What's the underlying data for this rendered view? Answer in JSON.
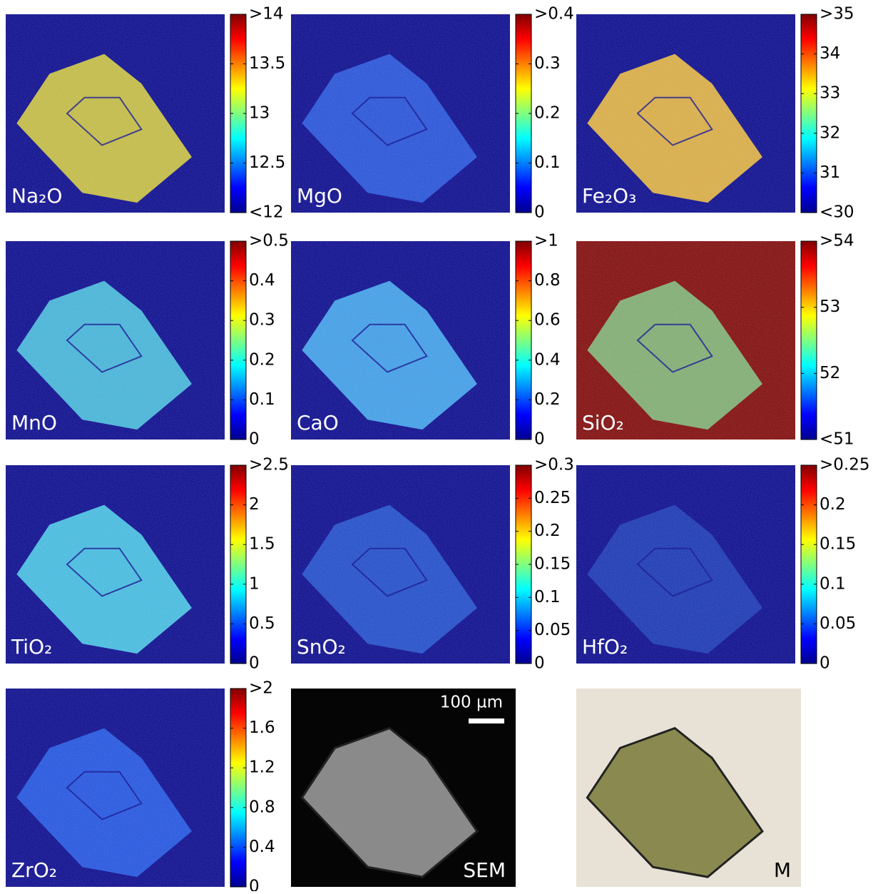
{
  "chart_data": [
    {
      "type": "heatmap",
      "label": "Na₂O",
      "colormap": "jet",
      "color": "#c8c040",
      "clim": [
        12,
        14
      ],
      "cticks": [
        {
          "value": 14,
          "label": ">14"
        },
        13.5,
        13,
        12.5,
        {
          "value": 12,
          "label": "<12"
        }
      ]
    },
    {
      "type": "heatmap",
      "label": "MgO",
      "colormap": "jet",
      "color": "#1e4ee0",
      "clim": [
        0,
        0.4
      ],
      "cticks": [
        {
          "value": 0.4,
          "label": ">0.4"
        },
        0.3,
        0.2,
        0.1,
        0
      ]
    },
    {
      "type": "heatmap",
      "label": "Fe₂O₃",
      "colormap": "jet",
      "color": "#e0b040",
      "clim": [
        30,
        35
      ],
      "cticks": [
        {
          "value": 35,
          "label": ">35"
        },
        34,
        33,
        32,
        31,
        {
          "value": 30,
          "label": "<30"
        }
      ]
    },
    {
      "type": "heatmap",
      "label": "MnO",
      "colormap": "jet",
      "color": "#40b8e0",
      "clim": [
        0,
        0.5
      ],
      "cticks": [
        {
          "value": 0.5,
          "label": ">0.5"
        },
        0.4,
        0.3,
        0.2,
        0.1,
        0
      ]
    },
    {
      "type": "heatmap",
      "label": "CaO",
      "colormap": "jet",
      "color": "#3aa0f0",
      "clim": [
        0,
        1
      ],
      "cticks": [
        {
          "value": 1,
          "label": ">1"
        },
        0.8,
        0.6,
        0.4,
        0.2,
        0
      ]
    },
    {
      "type": "heatmap",
      "label": "SiO₂",
      "colormap": "jet",
      "color": "#80b070",
      "background": "#800000",
      "clim": [
        51,
        54
      ],
      "cticks": [
        {
          "value": 54,
          "label": ">54"
        },
        53,
        52,
        {
          "value": 51,
          "label": "<51"
        }
      ]
    },
    {
      "type": "heatmap",
      "label": "TiO₂",
      "colormap": "jet",
      "color": "#40c0e8",
      "clim": [
        0,
        2.5
      ],
      "cticks": [
        {
          "value": 2.5,
          "label": ">2.5"
        },
        2,
        1.5,
        1,
        0.5,
        0
      ]
    },
    {
      "type": "heatmap",
      "label": "SnO₂",
      "colormap": "jet",
      "color": "#1848d0",
      "clim": [
        0,
        0.3
      ],
      "cticks": [
        {
          "value": 0.3,
          "label": ">0.3"
        },
        0.25,
        0.2,
        0.15,
        0.1,
        0.05,
        0
      ]
    },
    {
      "type": "heatmap",
      "label": "HfO₂",
      "colormap": "jet",
      "color": "#1030b8",
      "clim": [
        0,
        0.25
      ],
      "cticks": [
        {
          "value": 0.25,
          "label": ">0.25"
        },
        0.2,
        0.15,
        0.1,
        0.05,
        0
      ]
    },
    {
      "type": "heatmap",
      "label": "ZrO₂",
      "colormap": "jet",
      "color": "#1a50e8",
      "clim": [
        0,
        2
      ],
      "cticks": [
        {
          "value": 2,
          "label": ">2"
        },
        1.6,
        1.2,
        0.8,
        0.4,
        0
      ]
    },
    {
      "type": "image",
      "label": "SEM",
      "scale_bar": "100 µm",
      "color": "#8a8a8a",
      "background": "#050505"
    },
    {
      "type": "image",
      "label": "M",
      "color": "#8a8a50",
      "background": "#e8e2d6"
    }
  ]
}
